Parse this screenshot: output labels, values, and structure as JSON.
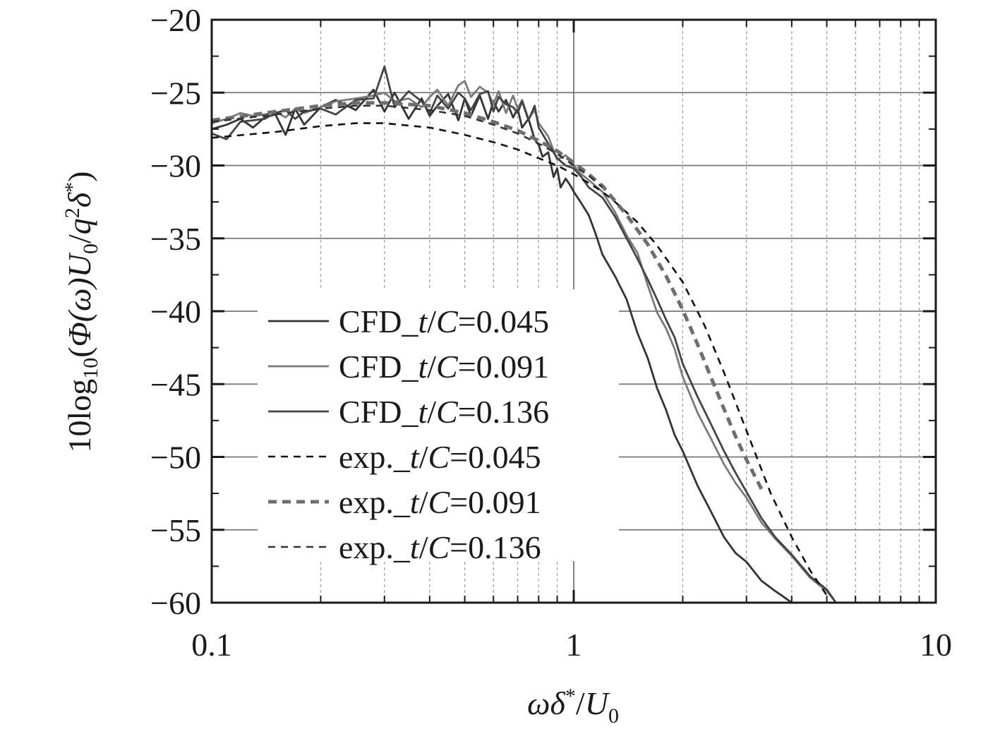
{
  "chart_data": {
    "type": "line",
    "title": "",
    "x_scale": "log",
    "xlim": [
      0.1,
      10
    ],
    "ylim": [
      -60,
      -20
    ],
    "grid": true,
    "legend_position": "lower-left",
    "xlabel": {
      "omega": "ω",
      "delta": "δ",
      "star": "*",
      "slash": "/",
      "U": "U",
      "sub0": "0"
    },
    "ylabel": {
      "prefix": "10log",
      "sub10": "10",
      "open": "(",
      "Phi": "Φ",
      "omega": "(ω)",
      "U": "U",
      "sub0": "0",
      "slash": "/",
      "q": "q",
      "sup2": "2",
      "delta": "δ",
      "star": "*",
      "close": ")"
    },
    "x_ticks": [
      {
        "value": 0.1,
        "label": "0.1"
      },
      {
        "value": 1,
        "label": "1"
      },
      {
        "value": 10,
        "label": "10"
      }
    ],
    "y_ticks": [
      {
        "value": -20,
        "label": "−20"
      },
      {
        "value": -25,
        "label": "−25"
      },
      {
        "value": -30,
        "label": "−30"
      },
      {
        "value": -35,
        "label": "−35"
      },
      {
        "value": -40,
        "label": "−40"
      },
      {
        "value": -45,
        "label": "−45"
      },
      {
        "value": -50,
        "label": "−50"
      },
      {
        "value": -55,
        "label": "−55"
      },
      {
        "value": -60,
        "label": "−60"
      }
    ],
    "series": [
      {
        "name": "CFD_t/C=0.045",
        "label": {
          "pre": "CFD_",
          "t": "t",
          "slash": "/",
          "C": "C",
          "post": "=0.045"
        },
        "style": "solid",
        "color": "#333333",
        "x": [
          0.1,
          0.11,
          0.12,
          0.13,
          0.14,
          0.15,
          0.16,
          0.17,
          0.18,
          0.2,
          0.22,
          0.25,
          0.28,
          0.3,
          0.32,
          0.35,
          0.38,
          0.4,
          0.42,
          0.45,
          0.48,
          0.5,
          0.52,
          0.55,
          0.58,
          0.6,
          0.62,
          0.65,
          0.68,
          0.7,
          0.72,
          0.75,
          0.78,
          0.8,
          0.82,
          0.85,
          0.88,
          0.9,
          0.92,
          0.95,
          0.98,
          1.0,
          1.05,
          1.1,
          1.15,
          1.2,
          1.3,
          1.4,
          1.5,
          1.6,
          1.7,
          1.8,
          1.9,
          2.0,
          2.2,
          2.4,
          2.6,
          2.8,
          3.0,
          3.3,
          3.6,
          3.8,
          4.0
        ],
        "y": [
          -27.5,
          -27.2,
          -26.8,
          -27.4,
          -26.7,
          -26.5,
          -27.9,
          -26.1,
          -27.2,
          -26.0,
          -25.5,
          -26.2,
          -24.8,
          -26.3,
          -25.0,
          -26.8,
          -25.4,
          -26.6,
          -25.9,
          -25.1,
          -26.9,
          -25.4,
          -26.6,
          -25.2,
          -26.8,
          -25.6,
          -26.3,
          -25.5,
          -26.7,
          -26.1,
          -27.4,
          -26.8,
          -28.2,
          -28.6,
          -29.4,
          -29.1,
          -30.8,
          -30.2,
          -31.5,
          -30.9,
          -31.4,
          -31.8,
          -32.6,
          -33.4,
          -34.7,
          -36.1,
          -37.6,
          -39.2,
          -41.5,
          -43.2,
          -45.3,
          -46.8,
          -48.5,
          -49.6,
          -52.0,
          -53.8,
          -55.5,
          -56.6,
          -57.2,
          -58.5,
          -59.2,
          -59.6,
          -60.0
        ]
      },
      {
        "name": "CFD_t/C=0.091",
        "label": {
          "pre": "CFD_",
          "t": "t",
          "slash": "/",
          "C": "C",
          "post": "=0.091"
        },
        "style": "solid",
        "color": "#7a7a7a",
        "x": [
          0.1,
          0.11,
          0.12,
          0.13,
          0.14,
          0.15,
          0.16,
          0.17,
          0.18,
          0.2,
          0.22,
          0.25,
          0.28,
          0.3,
          0.32,
          0.35,
          0.38,
          0.4,
          0.42,
          0.45,
          0.48,
          0.5,
          0.52,
          0.55,
          0.58,
          0.6,
          0.62,
          0.65,
          0.68,
          0.7,
          0.72,
          0.75,
          0.78,
          0.8,
          0.85,
          0.9,
          0.95,
          1.0,
          1.05,
          1.1,
          1.2,
          1.3,
          1.4,
          1.5,
          1.6,
          1.7,
          1.8,
          1.9,
          2.0,
          2.2,
          2.4,
          2.6,
          2.8,
          3.0,
          3.3,
          3.6,
          4.0,
          4.5,
          5.0,
          5.3
        ],
        "y": [
          -27.1,
          -26.8,
          -26.4,
          -26.6,
          -26.5,
          -26.3,
          -26.7,
          -26.1,
          -26.4,
          -26.0,
          -25.6,
          -25.4,
          -25.2,
          -25.0,
          -25.6,
          -25.4,
          -26.0,
          -25.3,
          -24.8,
          -25.9,
          -24.5,
          -24.2,
          -25.3,
          -24.6,
          -25.0,
          -25.8,
          -24.9,
          -26.4,
          -25.2,
          -26.1,
          -25.5,
          -26.8,
          -26.2,
          -27.1,
          -28.0,
          -29.6,
          -29.3,
          -30.0,
          -30.6,
          -31.0,
          -31.8,
          -33.2,
          -34.8,
          -36.0,
          -38.2,
          -40.1,
          -41.2,
          -42.6,
          -44.5,
          -47.0,
          -48.8,
          -50.5,
          -51.8,
          -52.8,
          -54.5,
          -55.6,
          -56.8,
          -58.3,
          -59.2,
          -60.0
        ]
      },
      {
        "name": "CFD_t/C=0.136",
        "label": {
          "pre": "CFD_",
          "t": "t",
          "slash": "/",
          "C": "C",
          "post": "=0.136"
        },
        "style": "solid",
        "color": "#444444",
        "x": [
          0.1,
          0.11,
          0.12,
          0.13,
          0.14,
          0.15,
          0.16,
          0.17,
          0.18,
          0.2,
          0.22,
          0.25,
          0.28,
          0.3,
          0.32,
          0.35,
          0.38,
          0.4,
          0.42,
          0.45,
          0.48,
          0.5,
          0.52,
          0.55,
          0.58,
          0.6,
          0.62,
          0.65,
          0.68,
          0.7,
          0.72,
          0.75,
          0.78,
          0.8,
          0.85,
          0.9,
          0.95,
          1.0,
          1.05,
          1.1,
          1.2,
          1.3,
          1.4,
          1.5,
          1.6,
          1.7,
          1.8,
          1.9,
          2.0,
          2.2,
          2.4,
          2.6,
          2.8,
          3.0,
          3.3,
          3.6,
          4.0,
          4.5,
          5.0,
          5.3
        ],
        "y": [
          -27.8,
          -28.2,
          -27.0,
          -26.9,
          -26.8,
          -26.4,
          -26.2,
          -26.8,
          -26.3,
          -26.1,
          -26.5,
          -25.5,
          -25.4,
          -23.2,
          -26.0,
          -24.9,
          -25.6,
          -26.4,
          -25.2,
          -26.1,
          -25.0,
          -25.4,
          -26.2,
          -25.1,
          -24.9,
          -26.3,
          -25.3,
          -25.8,
          -26.0,
          -26.4,
          -25.6,
          -26.9,
          -25.9,
          -27.4,
          -28.5,
          -29.5,
          -30.0,
          -30.2,
          -30.8,
          -31.5,
          -32.2,
          -33.5,
          -35.0,
          -36.4,
          -37.8,
          -39.2,
          -40.6,
          -41.8,
          -43.6,
          -45.9,
          -47.8,
          -49.6,
          -51.1,
          -52.4,
          -54.2,
          -55.5,
          -56.7,
          -58.2,
          -59.1,
          -60.0
        ]
      },
      {
        "name": "exp._t/C=0.045",
        "label": {
          "pre": "exp._",
          "t": "t",
          "slash": "/",
          "C": "C",
          "post": "=0.045"
        },
        "style": "dashed",
        "color": "#111111",
        "x": [
          0.1,
          0.15,
          0.2,
          0.25,
          0.3,
          0.4,
          0.5,
          0.6,
          0.7,
          0.8,
          0.9,
          1.0,
          1.1,
          1.2,
          1.3,
          1.5,
          1.7,
          2.0,
          2.3,
          2.6,
          3.0,
          3.5,
          4.0,
          4.5,
          5.0
        ],
        "y": [
          -28.1,
          -27.7,
          -27.3,
          -27.1,
          -27.1,
          -27.4,
          -27.9,
          -28.4,
          -28.9,
          -29.5,
          -30.0,
          -30.6,
          -31.2,
          -31.8,
          -32.5,
          -33.9,
          -35.5,
          -38.0,
          -41.0,
          -44.2,
          -48.2,
          -52.5,
          -55.5,
          -57.8,
          -59.5
        ]
      },
      {
        "name": "exp._t/C=0.091",
        "label": {
          "pre": "exp._",
          "t": "t",
          "slash": "/",
          "C": "C",
          "post": "=0.091"
        },
        "style": "dashed",
        "color": "#6e6e6e",
        "x": [
          0.1,
          0.15,
          0.2,
          0.25,
          0.3,
          0.4,
          0.5,
          0.6,
          0.7,
          0.8,
          0.9,
          1.0,
          1.1,
          1.2,
          1.4,
          1.6,
          1.8,
          2.0,
          2.2,
          2.4,
          2.6,
          2.8,
          3.0,
          3.3
        ],
        "y": [
          -26.9,
          -26.3,
          -25.9,
          -25.7,
          -25.7,
          -25.9,
          -26.4,
          -27.0,
          -27.6,
          -28.3,
          -29.0,
          -29.8,
          -30.6,
          -31.4,
          -33.4,
          -35.4,
          -37.6,
          -39.9,
          -42.3,
          -44.6,
          -46.7,
          -48.6,
          -50.2,
          -52.2
        ]
      },
      {
        "name": "exp._t/C=0.136",
        "label": {
          "pre": "exp._",
          "t": "t",
          "slash": "/",
          "C": "C",
          "post": "=0.136"
        },
        "style": "dashed",
        "color": "#333333",
        "x": [
          0.1,
          0.15,
          0.2,
          0.25,
          0.3,
          0.4,
          0.5,
          0.6,
          0.7,
          0.8,
          0.9,
          1.0,
          1.1,
          1.2
        ],
        "y": [
          -27.0,
          -26.5,
          -26.1,
          -25.9,
          -25.9,
          -26.2,
          -26.6,
          -27.2,
          -27.8,
          -28.5,
          -29.2,
          -30.0,
          -30.7,
          -31.5
        ]
      }
    ]
  }
}
